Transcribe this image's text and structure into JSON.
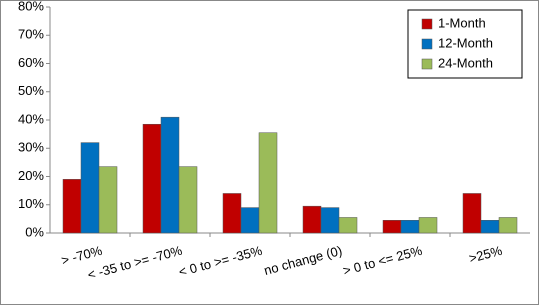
{
  "chart_data": {
    "type": "bar",
    "categories": [
      "> -70%",
      "< -35 to >= -70%",
      "< 0 to >= -35%",
      "no change (0)",
      "> 0 to <= 25%",
      ">25%"
    ],
    "series": [
      {
        "name": "1-Month",
        "color": "#c00000",
        "values": [
          19,
          38.5,
          14,
          9.5,
          4.5,
          14
        ]
      },
      {
        "name": "12-Month",
        "color": "#0070c0",
        "values": [
          32,
          41,
          9,
          9,
          4.5,
          4.5
        ]
      },
      {
        "name": "24-Month",
        "color": "#9bbb59",
        "values": [
          23.5,
          23.5,
          35.5,
          5.5,
          5.5,
          5.5
        ]
      }
    ],
    "ylim": [
      0,
      80
    ],
    "yticks": [
      {
        "value": 0,
        "label": "0%"
      },
      {
        "value": 10,
        "label": "10%"
      },
      {
        "value": 20,
        "label": "20%"
      },
      {
        "value": 30,
        "label": "30%"
      },
      {
        "value": 40,
        "label": "40%"
      },
      {
        "value": 50,
        "label": "50%"
      },
      {
        "value": 60,
        "label": "60%"
      },
      {
        "value": 70,
        "label": "70%"
      },
      {
        "value": 80,
        "label": "80%"
      }
    ],
    "grid": false,
    "legend": "top-right"
  }
}
